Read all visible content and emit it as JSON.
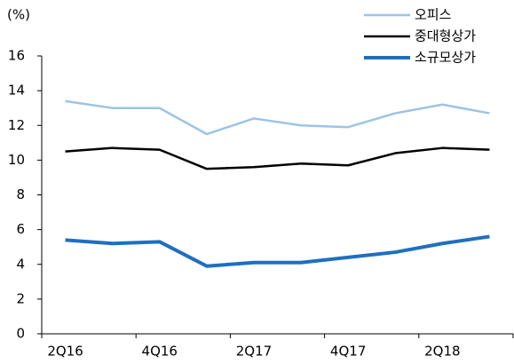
{
  "chart_data": {
    "type": "line",
    "y_label": "(%)",
    "categories": [
      "2Q16",
      null,
      "4Q16",
      null,
      "2Q17",
      null,
      "4Q17",
      null,
      "2Q18",
      null
    ],
    "series": [
      {
        "name": "오피스",
        "color": "#9dc3e6",
        "width": 2.5,
        "values": [
          13.4,
          13.0,
          13.0,
          11.5,
          12.4,
          12.0,
          11.9,
          12.7,
          13.2,
          12.7
        ]
      },
      {
        "name": "중대형상가",
        "color": "#000000",
        "width": 2.5,
        "values": [
          10.5,
          10.7,
          10.6,
          9.5,
          9.6,
          9.8,
          9.7,
          10.4,
          10.7,
          10.6
        ]
      },
      {
        "name": "소규모상가",
        "color": "#1f6fbf",
        "width": 4,
        "values": [
          5.4,
          5.2,
          5.3,
          3.9,
          4.1,
          4.1,
          4.4,
          4.7,
          5.2,
          5.6
        ]
      }
    ],
    "ylim": [
      0,
      16
    ],
    "yticks": [
      0,
      2,
      4,
      6,
      8,
      10,
      12,
      14,
      16
    ],
    "legend": "top-right"
  }
}
